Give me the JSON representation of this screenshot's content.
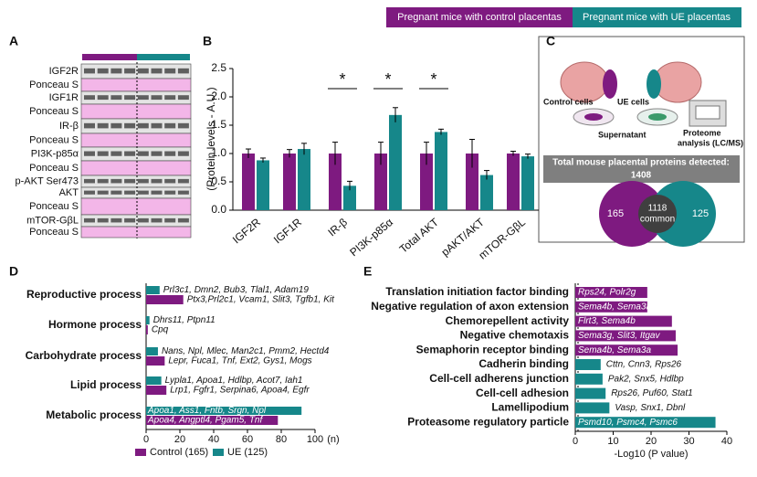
{
  "legend": {
    "control": "Pregnant mice with control placentas",
    "ue": "Pregnant mice with UE placentas"
  },
  "panelA": {
    "label": "A",
    "rows": [
      "IGF2R",
      "Ponceau S",
      "IGF1R",
      "Ponceau S",
      "IR-β",
      "Ponceau S",
      "PI3K-p85α",
      "Ponceau S",
      "p-AKT Ser473",
      "AKT",
      "Ponceau S",
      "mTOR-GβL",
      "Ponceau S"
    ]
  },
  "panelC": {
    "label": "C",
    "control_cells": "Control cells",
    "ue_cells": "UE cells",
    "supernatant": "Supernatant",
    "proteome": [
      "Proteome",
      "analysis (LC/MS)"
    ],
    "banner": [
      "Total mouse placental  proteins detected:",
      "1408"
    ],
    "venn": {
      "control": 165,
      "common": 1118,
      "common_label": "common",
      "ue": 125
    }
  },
  "chart_data": [
    {
      "type": "bar",
      "panel": "B",
      "ylabel": "(Protein levels - A.U.)",
      "categories": [
        "IGF2R",
        "IGF1R",
        "IR-β",
        "PI3K-p85α",
        "Total AKT",
        "pAKT/AKT",
        "mTOR-GβL"
      ],
      "series": [
        {
          "name": "Pregnant mice with control placentas",
          "color": "#7e1a80",
          "values": [
            1.0,
            1.0,
            1.0,
            1.0,
            1.0,
            1.0,
            1.0
          ],
          "errors": [
            0.08,
            0.07,
            0.2,
            0.2,
            0.2,
            0.25,
            0.04
          ]
        },
        {
          "name": "Pregnant mice with UE placentas",
          "color": "#16878a",
          "values": [
            0.88,
            1.08,
            0.43,
            1.68,
            1.38,
            0.62,
            0.95
          ],
          "errors": [
            0.04,
            0.1,
            0.08,
            0.13,
            0.05,
            0.08,
            0.04
          ]
        }
      ],
      "annotations": [
        "*",
        "*",
        "*"
      ],
      "ylim": [
        0,
        2.5
      ],
      "yticks": [
        {
          "value": 0,
          "label": "0.0"
        },
        0.5,
        {
          "value": 1,
          "label": "1.0"
        },
        1.5,
        {
          "value": 2,
          "label": "2.0"
        },
        2.5
      ]
    },
    {
      "type": "hbar",
      "panel": "D",
      "xlabel": "(n)",
      "categories": [
        "Reproductive process",
        "Hormone process",
        "Carbohydrate process",
        "Lipid process",
        "Metabolic process"
      ],
      "series": [
        {
          "name": "UE (125)",
          "color": "#16878a",
          "values": [
            8,
            2,
            7,
            9,
            92
          ],
          "genes": [
            "Prl3c1, Dmn2, Bub3, Tlal1, Adam19",
            "Dhrs11, Ptpn11",
            "Nans, Npl, Mlec, Man2c1, Pmm2, Hectd4",
            "Lypla1, Apoa1, Hdlbp, Acot7, Iah1",
            "Apoa1, Ass1, Fntb, Srgn, Npl"
          ]
        },
        {
          "name": "Control (165)",
          "color": "#7e1a80",
          "values": [
            22,
            1,
            11,
            12,
            78
          ],
          "genes": [
            "Ptx3,Prl2c1, Vcam1, Slit3, Tgfb1, Kit",
            "Cpq",
            "Lepr, Fuca1, Tnf, Ext2, Gys1, Mogs",
            "Lrp1, Fgfr1, Serpina6, Apoa4, Egfr",
            "Apoa4, Angptl4, Pgam5, Tnf"
          ]
        }
      ],
      "xlim": [
        0,
        100
      ],
      "xticks": [
        0,
        20,
        40,
        60,
        80,
        100
      ]
    },
    {
      "type": "hbar-single",
      "panel": "E",
      "xlabel": "-Log10 (P value)",
      "categories": [
        "Translation initiation factor binding",
        "Negative regulation of axon extension",
        "Chemorepellent activity",
        "Negative chemotaxis",
        "Semaphorin receptor binding",
        "Cadherin binding",
        "Cell-cell adherens junction",
        "Cell-cell adhesion",
        "Lamellipodium",
        "Proteasome regulatory particle"
      ],
      "values": [
        19,
        19,
        25.5,
        26.5,
        27,
        6.7,
        7.2,
        8,
        9,
        37
      ],
      "colors": [
        "#7e1a80",
        "#7e1a80",
        "#7e1a80",
        "#7e1a80",
        "#7e1a80",
        "#16878a",
        "#16878a",
        "#16878a",
        "#16878a",
        "#16878a"
      ],
      "genes": [
        "Rps24, Polr2g",
        "Sema4b, Sema3a",
        "Flrt3, Sema4b",
        "Sema3g, Slit3, Itgav",
        "Sema4b, Sema3a",
        "Cttn, Cnn3, Rps26",
        "Pak2, Snx5, Hdlbp",
        "Rps26, Puf60, Stat1",
        "Vasp, Snx1, Dbnl",
        "Psmd10, Psmc4, Psmc6"
      ],
      "xlim": [
        0,
        40
      ],
      "xticks": [
        0,
        10,
        20,
        30,
        40
      ]
    }
  ]
}
